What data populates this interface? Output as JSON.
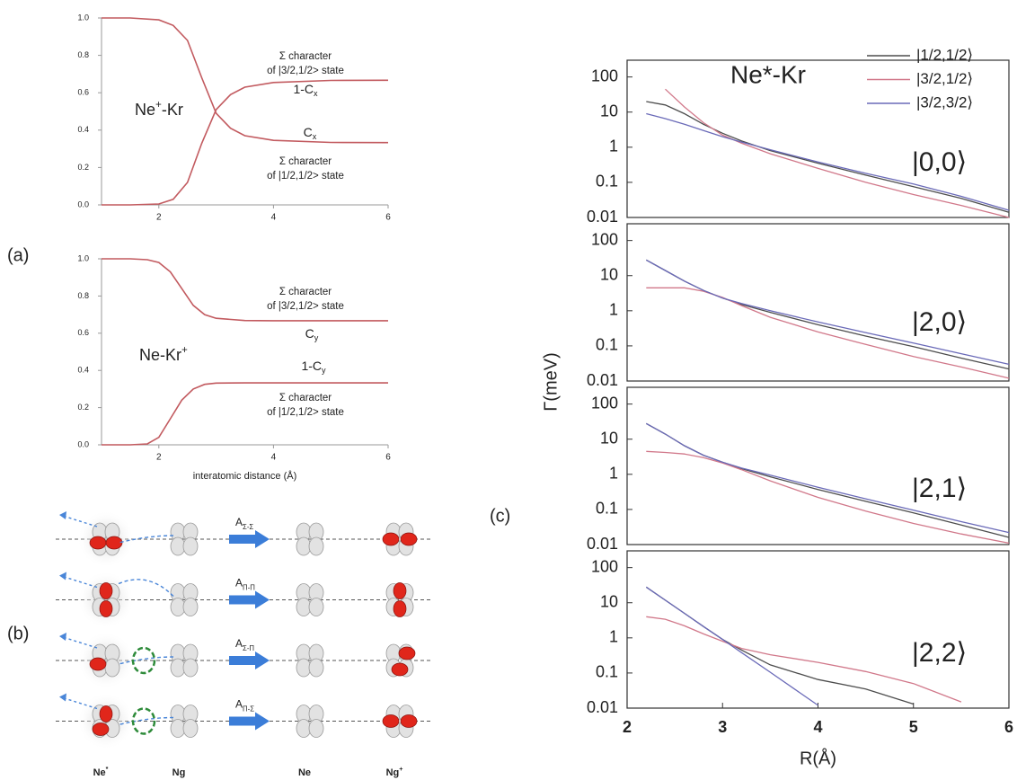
{
  "panel_labels": [
    "(a)",
    "(b)",
    "(c)"
  ],
  "chart_data": [
    {
      "type": "line",
      "xlim": [
        1,
        6
      ],
      "xticks": [
        2,
        4,
        6
      ],
      "ylim": [
        0,
        1
      ],
      "yticks": [
        {
          "value": 0,
          "label": "0.0"
        },
        0.2,
        0.4,
        0.6,
        0.8,
        {
          "value": 1,
          "label": "1.0"
        }
      ],
      "x": [
        1,
        1.5,
        2,
        2.25,
        2.5,
        2.75,
        3,
        3.25,
        3.5,
        4,
        5,
        6
      ],
      "series": [
        {
          "color": "#c25a5f",
          "values": [
            1,
            1,
            0.99,
            0.96,
            0.88,
            0.68,
            0.49,
            0.41,
            0.37,
            0.345,
            0.334,
            0.333
          ]
        },
        {
          "color": "#c25a5f",
          "values": [
            0,
            0,
            0.005,
            0.03,
            0.12,
            0.33,
            0.51,
            0.59,
            0.63,
            0.655,
            0.666,
            0.667
          ]
        }
      ],
      "species": {
        "base": "Ne",
        "sup": "+",
        "tail": "-Kr"
      },
      "curve_labels": [
        {
          "base": "1-C",
          "sub": "x"
        },
        {
          "base": "C",
          "sub": "x"
        }
      ],
      "annotations": [
        {
          "lines": [
            "Σ character",
            "of |3/2,1/2> state"
          ]
        },
        {
          "lines": [
            "Σ character",
            "of |1/2,1/2> state"
          ]
        }
      ]
    },
    {
      "type": "line",
      "xlim": [
        1,
        6
      ],
      "xticks": [
        2,
        4,
        6
      ],
      "ylim": [
        0,
        1
      ],
      "yticks": [
        {
          "value": 0,
          "label": "0.0"
        },
        0.2,
        0.4,
        0.6,
        0.8,
        {
          "value": 1,
          "label": "1.0"
        }
      ],
      "xlabel": "interatomic distance (Å)",
      "x": [
        1,
        1.5,
        1.8,
        2,
        2.2,
        2.4,
        2.6,
        2.8,
        3,
        3.5,
        4,
        6
      ],
      "series": [
        {
          "color": "#c25a5f",
          "values": [
            1,
            1,
            0.995,
            0.98,
            0.93,
            0.84,
            0.75,
            0.7,
            0.68,
            0.668,
            0.667,
            0.667
          ]
        },
        {
          "color": "#c25a5f",
          "values": [
            0,
            0,
            0.005,
            0.04,
            0.14,
            0.24,
            0.3,
            0.325,
            0.332,
            0.333,
            0.333,
            0.333
          ]
        }
      ],
      "species": {
        "base": "Ne-Kr",
        "sup": "+"
      },
      "curve_labels": [
        {
          "base": "C",
          "sub": "y"
        },
        {
          "base": "1-C",
          "sub": "y"
        }
      ],
      "annotations": [
        {
          "lines": [
            "Σ character",
            "of |3/2,1/2> state"
          ]
        },
        {
          "lines": [
            "Σ character",
            "of |1/2,1/2> state"
          ]
        }
      ]
    },
    {
      "type": "line",
      "yscale": "log",
      "title": "Ne*-Kr",
      "state": "|0,0⟩",
      "xlim": [
        2,
        6
      ],
      "ylim": [
        0.01,
        300
      ],
      "yticks": [
        0.01,
        0.1,
        1,
        10,
        100
      ],
      "x": [
        2.2,
        2.4,
        2.6,
        2.8,
        3,
        3.2,
        3.5,
        4,
        4.5,
        5,
        5.5,
        6
      ],
      "series": [
        {
          "name": "|1/2,1/2⟩",
          "color": "#4d4d4d",
          "values": [
            20,
            16,
            9,
            4.5,
            2.5,
            1.5,
            0.8,
            0.35,
            0.16,
            0.075,
            0.035,
            0.014
          ]
        },
        {
          "name": "|3/2,1/2⟩",
          "color": "#d1788a",
          "values": [
            null,
            45,
            14,
            5,
            2.2,
            1.3,
            0.65,
            0.25,
            0.1,
            0.045,
            0.022,
            0.01
          ]
        },
        {
          "name": "|3/2,3/2⟩",
          "color": "#6a6ab8",
          "values": [
            9,
            6.5,
            4.5,
            3,
            2,
            1.4,
            0.85,
            0.38,
            0.18,
            0.09,
            0.04,
            0.016
          ]
        }
      ]
    },
    {
      "type": "line",
      "yscale": "log",
      "state": "|2,0⟩",
      "xlim": [
        2,
        6
      ],
      "ylim": [
        0.01,
        300
      ],
      "yticks": [
        0.01,
        0.1,
        1,
        10,
        100
      ],
      "x": [
        2.2,
        2.4,
        2.6,
        2.8,
        3,
        3.2,
        3.5,
        4,
        4.5,
        5,
        5.5,
        6
      ],
      "series": [
        {
          "color": "#4d4d4d",
          "values": [
            28,
            14,
            7,
            3.8,
            2.3,
            1.5,
            0.9,
            0.4,
            0.19,
            0.095,
            0.045,
            0.022
          ]
        },
        {
          "color": "#d1788a",
          "values": [
            4.5,
            4.5,
            4.5,
            3.6,
            2.4,
            1.4,
            0.65,
            0.25,
            0.11,
            0.05,
            0.025,
            0.012
          ]
        },
        {
          "color": "#6a6ab8",
          "values": [
            28,
            14,
            7,
            3.8,
            2.3,
            1.6,
            1,
            0.48,
            0.24,
            0.12,
            0.06,
            0.03
          ]
        }
      ]
    },
    {
      "type": "line",
      "yscale": "log",
      "state": "|2,1⟩",
      "xlim": [
        2,
        6
      ],
      "ylim": [
        0.01,
        300
      ],
      "yticks": [
        0.01,
        0.1,
        1,
        10,
        100
      ],
      "x": [
        2.2,
        2.4,
        2.6,
        2.8,
        3,
        3.2,
        3.5,
        4,
        4.5,
        5,
        5.5,
        6
      ],
      "series": [
        {
          "color": "#4d4d4d",
          "values": [
            28,
            14,
            6.5,
            3.5,
            2.2,
            1.45,
            0.85,
            0.37,
            0.17,
            0.08,
            0.036,
            0.016
          ]
        },
        {
          "color": "#d1788a",
          "values": [
            4.5,
            4.2,
            3.8,
            3,
            2.1,
            1.35,
            0.65,
            0.22,
            0.09,
            0.04,
            0.02,
            0.011
          ]
        },
        {
          "color": "#6a6ab8",
          "values": [
            28,
            14,
            6.5,
            3.5,
            2.2,
            1.5,
            0.95,
            0.43,
            0.2,
            0.095,
            0.045,
            0.022
          ]
        }
      ]
    },
    {
      "type": "line",
      "yscale": "log",
      "state": "|2,2⟩",
      "xlabel": "R(Å)",
      "xlim": [
        2,
        6
      ],
      "xticks": [
        2,
        3,
        4,
        5,
        6
      ],
      "ylim": [
        0.01,
        300
      ],
      "yticks": [
        0.01,
        0.1,
        1,
        10,
        100
      ],
      "x": [
        2.2,
        2.4,
        2.6,
        2.8,
        3,
        3.2,
        3.5,
        4,
        4.5,
        5,
        5.5,
        6
      ],
      "series": [
        {
          "color": "#4d4d4d",
          "values": [
            28,
            11.8,
            5,
            2.1,
            0.9,
            0.45,
            0.17,
            0.065,
            0.035,
            0.013,
            null,
            null
          ]
        },
        {
          "color": "#d1788a",
          "values": [
            4,
            3.4,
            2.2,
            1.3,
            0.8,
            0.5,
            0.33,
            0.2,
            0.11,
            0.05,
            0.015,
            null
          ]
        },
        {
          "color": "#6a6ab8",
          "values": [
            28,
            11.8,
            5,
            2.1,
            0.9,
            0.38,
            0.105,
            0.012,
            null,
            null,
            null,
            null
          ]
        }
      ]
    }
  ],
  "c_axis": {
    "ylabel": "Γ(meV)"
  },
  "diagram": {
    "transitions": [
      {
        "base": "A",
        "sub": "Σ-Σ"
      },
      {
        "base": "A",
        "sub": "Π-Π"
      },
      {
        "base": "A",
        "sub": "Σ-Π"
      },
      {
        "base": "A",
        "sub": "Π-Σ"
      }
    ],
    "atoms": [
      {
        "base": "Ne",
        "sup": "*"
      },
      {
        "base": "Ng"
      },
      {
        "base": "Ne"
      },
      {
        "base": "Ng",
        "sup": "+"
      }
    ]
  }
}
